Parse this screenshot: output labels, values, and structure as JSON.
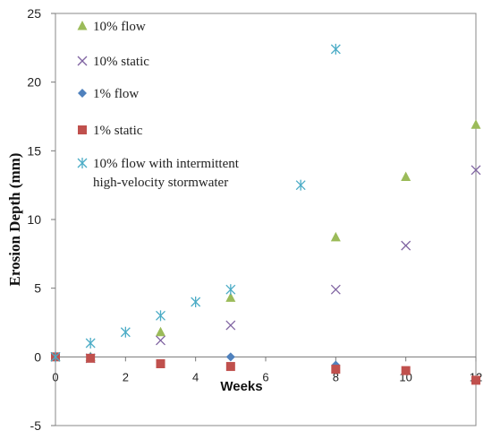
{
  "chart_data": {
    "type": "scatter",
    "xlabel": "Weeks",
    "ylabel": "Erosion Depth (mm)",
    "xlim": [
      0,
      12
    ],
    "ylim": [
      -5,
      25
    ],
    "x_ticks": [
      0,
      2,
      4,
      6,
      8,
      10,
      12
    ],
    "y_ticks": [
      -5,
      0,
      5,
      10,
      15,
      20,
      25
    ],
    "grid": false,
    "legend_position": "top-left",
    "series": [
      {
        "name": "10% flow",
        "marker": "triangle",
        "color": "#9bbb59",
        "points": [
          [
            0,
            0
          ],
          [
            1,
            0
          ],
          [
            3,
            1.8
          ],
          [
            5,
            4.3
          ],
          [
            8,
            8.7
          ],
          [
            10,
            13.1
          ],
          [
            12,
            16.9
          ]
        ]
      },
      {
        "name": "10% static",
        "marker": "x",
        "color": "#8064a2",
        "points": [
          [
            0,
            0
          ],
          [
            1,
            -0.1
          ],
          [
            3,
            1.2
          ],
          [
            5,
            2.3
          ],
          [
            8,
            4.9
          ],
          [
            10,
            8.1
          ],
          [
            12,
            13.6
          ]
        ]
      },
      {
        "name": "1% flow",
        "marker": "diamond",
        "color": "#4f81bd",
        "points": [
          [
            0,
            0
          ],
          [
            1,
            0
          ],
          [
            5,
            0
          ],
          [
            8,
            -0.6
          ]
        ]
      },
      {
        "name": "1% static",
        "marker": "square",
        "color": "#c0504d",
        "points": [
          [
            0,
            0
          ],
          [
            1,
            -0.1
          ],
          [
            3,
            -0.5
          ],
          [
            5,
            -0.7
          ],
          [
            8,
            -0.9
          ],
          [
            10,
            -1.0
          ],
          [
            12,
            -1.7
          ]
        ]
      },
      {
        "name": "10% flow with intermittent high-velocity stormwater",
        "name_lines": [
          "10% flow with intermittent",
          "high-velocity stormwater"
        ],
        "marker": "asterisk",
        "color": "#4bacc6",
        "points": [
          [
            0,
            0
          ],
          [
            1,
            1.0
          ],
          [
            2,
            1.8
          ],
          [
            3,
            3.0
          ],
          [
            4,
            4.0
          ],
          [
            5,
            4.9
          ],
          [
            7,
            12.5
          ],
          [
            8,
            22.4
          ]
        ]
      }
    ]
  }
}
